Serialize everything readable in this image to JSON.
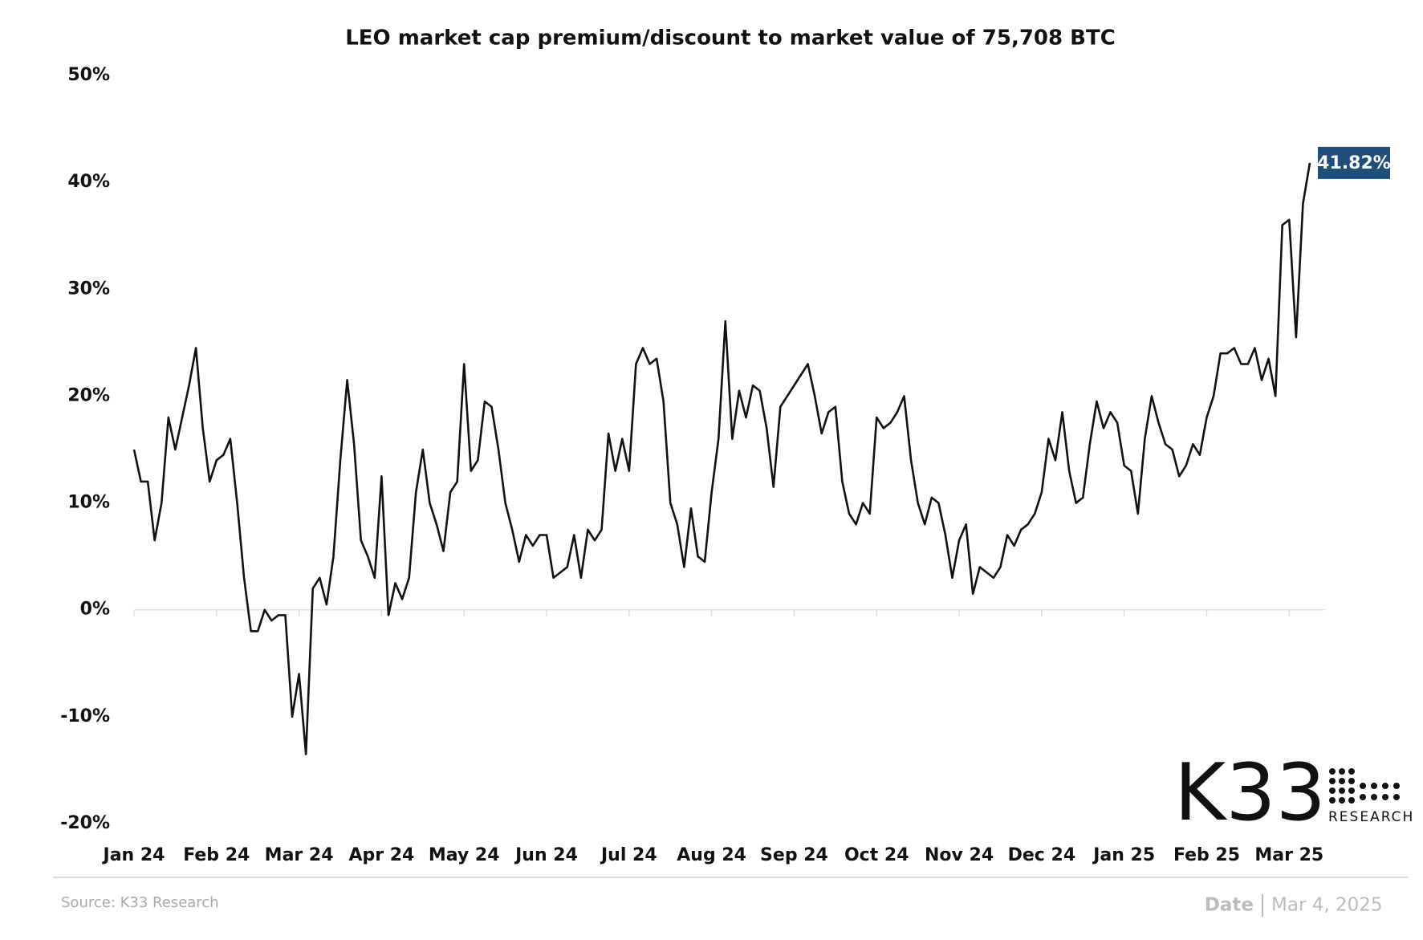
{
  "chart_data": {
    "type": "line",
    "title": "LEO market cap premium/discount to market value of 75,708 BTC",
    "categories": [
      "Jan 24",
      null,
      null,
      null,
      null,
      null,
      null,
      null,
      null,
      null,
      null,
      null,
      "Feb 24",
      null,
      null,
      null,
      null,
      null,
      null,
      null,
      null,
      null,
      null,
      null,
      "Mar 24",
      null,
      null,
      null,
      null,
      null,
      null,
      null,
      null,
      null,
      null,
      null,
      "Apr 24",
      null,
      null,
      null,
      null,
      null,
      null,
      null,
      null,
      null,
      null,
      null,
      "May 24",
      null,
      null,
      null,
      null,
      null,
      null,
      null,
      null,
      null,
      null,
      null,
      "Jun 24",
      null,
      null,
      null,
      null,
      null,
      null,
      null,
      null,
      null,
      null,
      null,
      "Jul 24",
      null,
      null,
      null,
      null,
      null,
      null,
      null,
      null,
      null,
      null,
      null,
      "Aug 24",
      null,
      null,
      null,
      null,
      null,
      null,
      null,
      null,
      null,
      null,
      null,
      "Sep 24",
      null,
      null,
      null,
      null,
      null,
      null,
      null,
      null,
      null,
      null,
      null,
      "Oct 24",
      null,
      null,
      null,
      null,
      null,
      null,
      null,
      null,
      null,
      null,
      null,
      "Nov 24",
      null,
      null,
      null,
      null,
      null,
      null,
      null,
      null,
      null,
      null,
      null,
      "Dec 24",
      null,
      null,
      null,
      null,
      null,
      null,
      null,
      null,
      null,
      null,
      null,
      "Jan 25",
      null,
      null,
      null,
      null,
      null,
      null,
      null,
      null,
      null,
      null,
      null,
      "Feb 25",
      null,
      null,
      null,
      null,
      null,
      null,
      null,
      null,
      null,
      null,
      null,
      "Mar 25",
      null,
      null,
      null
    ],
    "values": [
      15,
      12,
      12,
      6.5,
      10,
      18,
      15,
      18,
      21,
      24.5,
      17,
      12,
      14,
      14.5,
      16,
      10,
      3,
      -2,
      -2,
      0,
      -1,
      -0.5,
      -0.5,
      -10,
      -6,
      -13.5,
      2,
      3,
      0.5,
      5,
      14,
      21.5,
      15.5,
      6.5,
      5,
      3,
      12.5,
      -0.5,
      2.5,
      1,
      3,
      11,
      15,
      10,
      8,
      5.5,
      11,
      12,
      23,
      13,
      14,
      19.5,
      19,
      15,
      10,
      7.5,
      4.5,
      7,
      6,
      7,
      7,
      3,
      3.5,
      4,
      7,
      3,
      7.5,
      6.5,
      7.5,
      16.5,
      13,
      16,
      13,
      23,
      24.5,
      23,
      23.5,
      19.5,
      10,
      8,
      4,
      9.5,
      5,
      4.5,
      11,
      16,
      27,
      16,
      20.5,
      18,
      21,
      20.5,
      17,
      11.5,
      19,
      20,
      21,
      22,
      23,
      20,
      16.5,
      18.5,
      19,
      12,
      9,
      8,
      10,
      9,
      18,
      17,
      17.5,
      18.5,
      20,
      14,
      10,
      8,
      10.5,
      10,
      7,
      3,
      6.5,
      8,
      1.5,
      4,
      3.5,
      3,
      4,
      7,
      6,
      7.5,
      8,
      9,
      11,
      16,
      14,
      18.5,
      13,
      10,
      10.5,
      15.5,
      19.5,
      17,
      18.5,
      17.5,
      13.5,
      13,
      9,
      16,
      20,
      17.5,
      15.5,
      15,
      12.5,
      13.5,
      15.5,
      14.5,
      18,
      20,
      24,
      24,
      24.5,
      23,
      23,
      24.5,
      21.5,
      23.5,
      20,
      36,
      36.5,
      25.5,
      38,
      41.82
    ],
    "value_labels": [
      null,
      null,
      null,
      null,
      null,
      null,
      null,
      null,
      null,
      null,
      null,
      null,
      null,
      null,
      null,
      null,
      null,
      null,
      null,
      null,
      null,
      null,
      null,
      null,
      null,
      null,
      null,
      null,
      null,
      null,
      null,
      null,
      null,
      null,
      null,
      null,
      null,
      null,
      null,
      null,
      null,
      null,
      null,
      null,
      null,
      null,
      null,
      null,
      null,
      null,
      null,
      null,
      null,
      null,
      null,
      null,
      null,
      null,
      null,
      null,
      null,
      null,
      null,
      null,
      null,
      null,
      null,
      null,
      null,
      null,
      null,
      null,
      null,
      null,
      null,
      null,
      null,
      null,
      null,
      null,
      null,
      null,
      null,
      null,
      null,
      null,
      null,
      null,
      null,
      null,
      null,
      null,
      null,
      null,
      null,
      null,
      null,
      null,
      null,
      null,
      null,
      null,
      null,
      null,
      null,
      null,
      null,
      null,
      null,
      null,
      null,
      null,
      null,
      null,
      null,
      null,
      null,
      null,
      null,
      null,
      null,
      null,
      null,
      null,
      null,
      null,
      null,
      null,
      null,
      null,
      null,
      null,
      null,
      null,
      null,
      null,
      null,
      null,
      null,
      null,
      null,
      null,
      null,
      null,
      null,
      null,
      null,
      null,
      null,
      null,
      null,
      null,
      null,
      null,
      null,
      null,
      null,
      null,
      null,
      null,
      null,
      null,
      null,
      null,
      null,
      null,
      null,
      null,
      null,
      null,
      null,
      "41.82%"
    ],
    "color": "#111111",
    "label_color": "#1f4e79",
    "ylim": [
      -20,
      50
    ],
    "yticks": [
      {
        "value": -20,
        "label": "-20%"
      },
      {
        "value": -10,
        "label": "-10%"
      },
      {
        "value": 0,
        "label": "0%"
      },
      {
        "value": 10,
        "label": "10%"
      },
      {
        "value": 20,
        "label": "20%"
      },
      {
        "value": 30,
        "label": "30%"
      },
      {
        "value": 40,
        "label": "40%"
      },
      {
        "value": 50,
        "label": "50%"
      }
    ],
    "grid": false
  },
  "source": "Source: K33 Research",
  "date_label": "Date",
  "date": "Mar 4, 2025",
  "logo": {
    "text": "K33",
    "subtext": "RESEARCH"
  }
}
